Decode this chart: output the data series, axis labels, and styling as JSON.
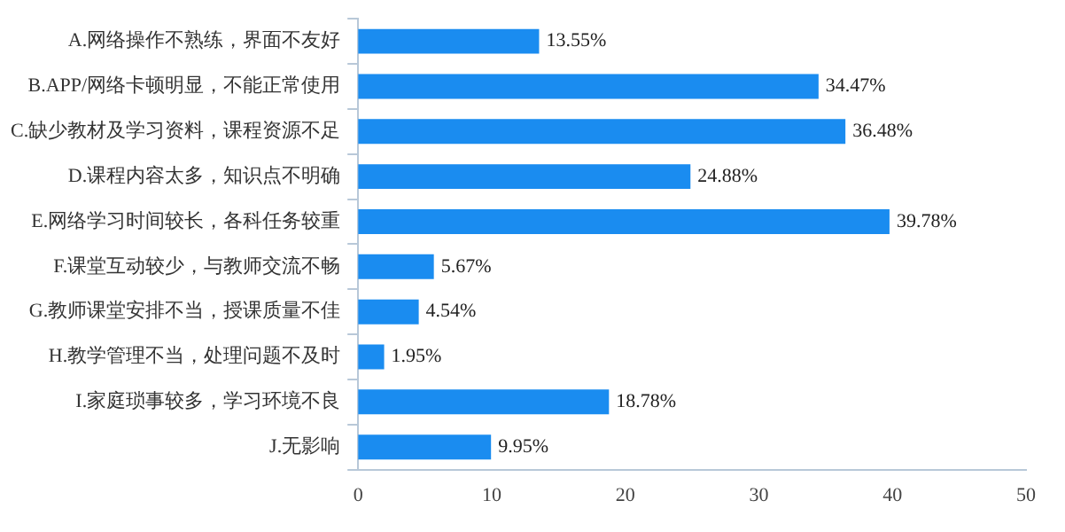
{
  "chart_data": {
    "type": "bar",
    "orientation": "horizontal",
    "categories": [
      "A.网络操作不熟练，界面不友好",
      "B.APP/网络卡顿明显，不能正常使用",
      "C.缺少教材及学习资料，课程资源不足",
      "D.课程内容太多，知识点不明确",
      "E.网络学习时间较长，各科任务较重",
      "F.课堂互动较少，与教师交流不畅",
      "G.教师课堂安排不当，授课质量不佳",
      "H.教学管理不当，处理问题不及时",
      "I.家庭琐事较多，学习环境不良",
      "J.无影响"
    ],
    "values": [
      13.55,
      34.47,
      36.48,
      24.88,
      39.78,
      5.67,
      4.54,
      1.95,
      18.78,
      9.95
    ],
    "value_labels": [
      "13.55%",
      "34.47%",
      "36.48%",
      "24.88%",
      "39.78%",
      "5.67%",
      "4.54%",
      "1.95%",
      "18.78%",
      "9.95%"
    ],
    "color": "#1a8cf0",
    "xlim": [
      0,
      50
    ],
    "xticks": [
      0,
      10,
      20,
      30,
      40,
      50
    ],
    "grid": false,
    "legend": false
  }
}
